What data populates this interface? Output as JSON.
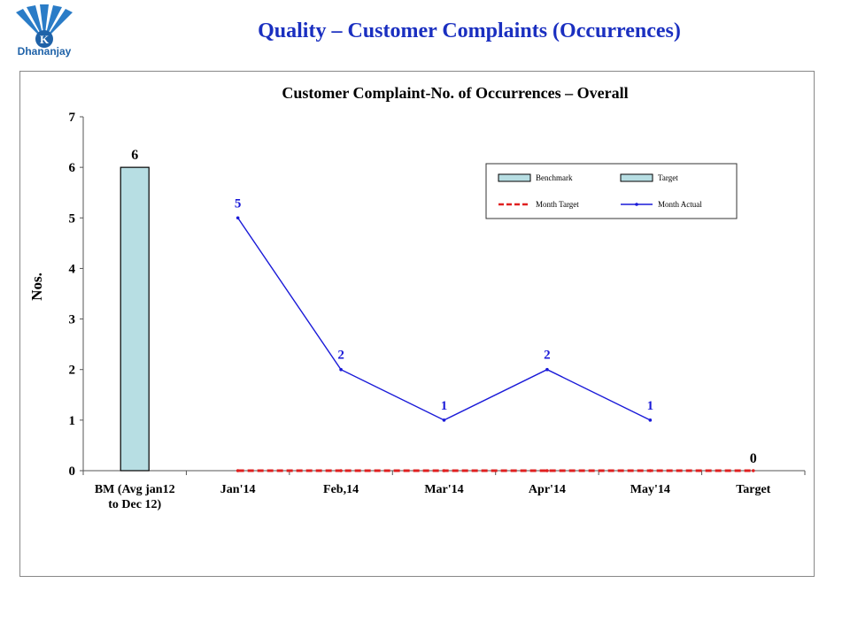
{
  "header": {
    "title": "Quality – Customer Complaints (Occurrences)",
    "logo_text": "Dhananjay"
  },
  "chart_data": {
    "type": "bar+line",
    "title": "Customer Complaint-No. of  Occurrences –  Overall",
    "ylabel": "Nos.",
    "xlabel": "",
    "ylim": [
      0,
      7
    ],
    "yticks": [
      "0",
      "1",
      "2",
      "3",
      "4",
      "5",
      "6",
      "7"
    ],
    "categories": [
      "BM (Avg jan12 to Dec 12)",
      "Jan'14",
      "Feb,14",
      "Mar'14",
      "Apr'14",
      "May'14",
      "Target"
    ],
    "category_lines": [
      [
        "BM (Avg jan12",
        "to Dec 12)"
      ],
      [
        "Jan'14"
      ],
      [
        "Feb,14"
      ],
      [
        "Mar'14"
      ],
      [
        "Apr'14"
      ],
      [
        "May'14"
      ],
      [
        "Target"
      ]
    ],
    "series": [
      {
        "name": "Benchmark",
        "kind": "bar",
        "color": "#b7dee3",
        "values": [
          6,
          null,
          null,
          null,
          null,
          null,
          null
        ],
        "labels": [
          "6",
          "",
          "",
          "",
          "",
          "",
          ""
        ]
      },
      {
        "name": "Target",
        "kind": "bar",
        "color": "#b7dee3",
        "values": [
          null,
          null,
          null,
          null,
          null,
          null,
          0
        ],
        "labels": [
          "",
          "",
          "",
          "",
          "",
          "",
          "0"
        ]
      },
      {
        "name": "Month Target",
        "kind": "line-dashed",
        "color": "#e02020",
        "values": [
          null,
          0,
          0,
          0,
          0,
          0,
          0
        ]
      },
      {
        "name": "Month Actual",
        "kind": "line",
        "color": "#1a1ad8",
        "values": [
          null,
          5,
          2,
          1,
          2,
          1,
          null
        ],
        "labels": [
          "",
          "5",
          "2",
          "1",
          "2",
          "1",
          ""
        ]
      }
    ],
    "legend": [
      {
        "label": "Benchmark",
        "symbol": "box"
      },
      {
        "label": "Target",
        "symbol": "box"
      },
      {
        "label": "Month Target",
        "symbol": "dash"
      },
      {
        "label": "Month Actual",
        "symbol": "line"
      }
    ],
    "legend_position": "top-right",
    "grid": false
  }
}
